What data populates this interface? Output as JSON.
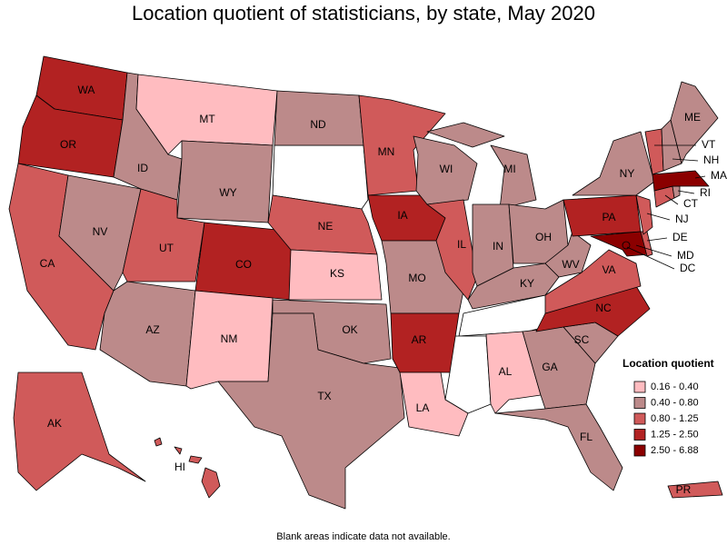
{
  "title": "Location quotient of statisticians, by state, May 2020",
  "legend": {
    "title": "Location quotient",
    "bins": [
      {
        "label": "0.16 - 0.40",
        "color": "#ffbcc0"
      },
      {
        "label": "0.40 - 0.80",
        "color": "#bc8a8a"
      },
      {
        "label": "0.80 - 1.25",
        "color": "#d05a5a"
      },
      {
        "label": "1.25 - 2.50",
        "color": "#b22222"
      },
      {
        "label": "2.50 - 6.88",
        "color": "#8b0000"
      }
    ]
  },
  "states": [
    {
      "label": "WA",
      "bin": 3
    },
    {
      "label": "OR",
      "bin": 3
    },
    {
      "label": "CA",
      "bin": 2
    },
    {
      "label": "NV",
      "bin": 1
    },
    {
      "label": "ID",
      "bin": 1
    },
    {
      "label": "MT",
      "bin": 0
    },
    {
      "label": "WY",
      "bin": 1
    },
    {
      "label": "UT",
      "bin": 2
    },
    {
      "label": "CO",
      "bin": 3
    },
    {
      "label": "AZ",
      "bin": 1
    },
    {
      "label": "NM",
      "bin": 0
    },
    {
      "label": "ND",
      "bin": 1
    },
    {
      "label": "NE",
      "bin": 2
    },
    {
      "label": "KS",
      "bin": 0
    },
    {
      "label": "OK",
      "bin": 1
    },
    {
      "label": "TX",
      "bin": 1
    },
    {
      "label": "MN",
      "bin": 2
    },
    {
      "label": "IA",
      "bin": 3
    },
    {
      "label": "MO",
      "bin": 1
    },
    {
      "label": "AR",
      "bin": 3
    },
    {
      "label": "LA",
      "bin": 0
    },
    {
      "label": "WI",
      "bin": 1
    },
    {
      "label": "IL",
      "bin": 2
    },
    {
      "label": "MI",
      "bin": 1
    },
    {
      "label": "IN",
      "bin": 1
    },
    {
      "label": "OH",
      "bin": 1
    },
    {
      "label": "KY",
      "bin": 1
    },
    {
      "label": "AL",
      "bin": 0
    },
    {
      "label": "GA",
      "bin": 1
    },
    {
      "label": "FL",
      "bin": 1
    },
    {
      "label": "SC",
      "bin": 1
    },
    {
      "label": "NC",
      "bin": 3
    },
    {
      "label": "VA",
      "bin": 2
    },
    {
      "label": "WV",
      "bin": 1
    },
    {
      "label": "PA",
      "bin": 3
    },
    {
      "label": "NY",
      "bin": 1
    },
    {
      "label": "MD",
      "bin": 4
    },
    {
      "label": "DE",
      "bin": 2
    },
    {
      "label": "NJ",
      "bin": 2
    },
    {
      "label": "CT",
      "bin": 2
    },
    {
      "label": "RI",
      "bin": 1
    },
    {
      "label": "MA",
      "bin": 4
    },
    {
      "label": "VT",
      "bin": 2
    },
    {
      "label": "NH",
      "bin": 1
    },
    {
      "label": "ME",
      "bin": 1
    },
    {
      "label": "DC",
      "bin": 4
    },
    {
      "label": "AK",
      "bin": 2
    },
    {
      "label": "HI",
      "bin": 2
    },
    {
      "label": "PR",
      "bin": 2
    }
  ],
  "note": "Blank areas indicate data not available."
}
